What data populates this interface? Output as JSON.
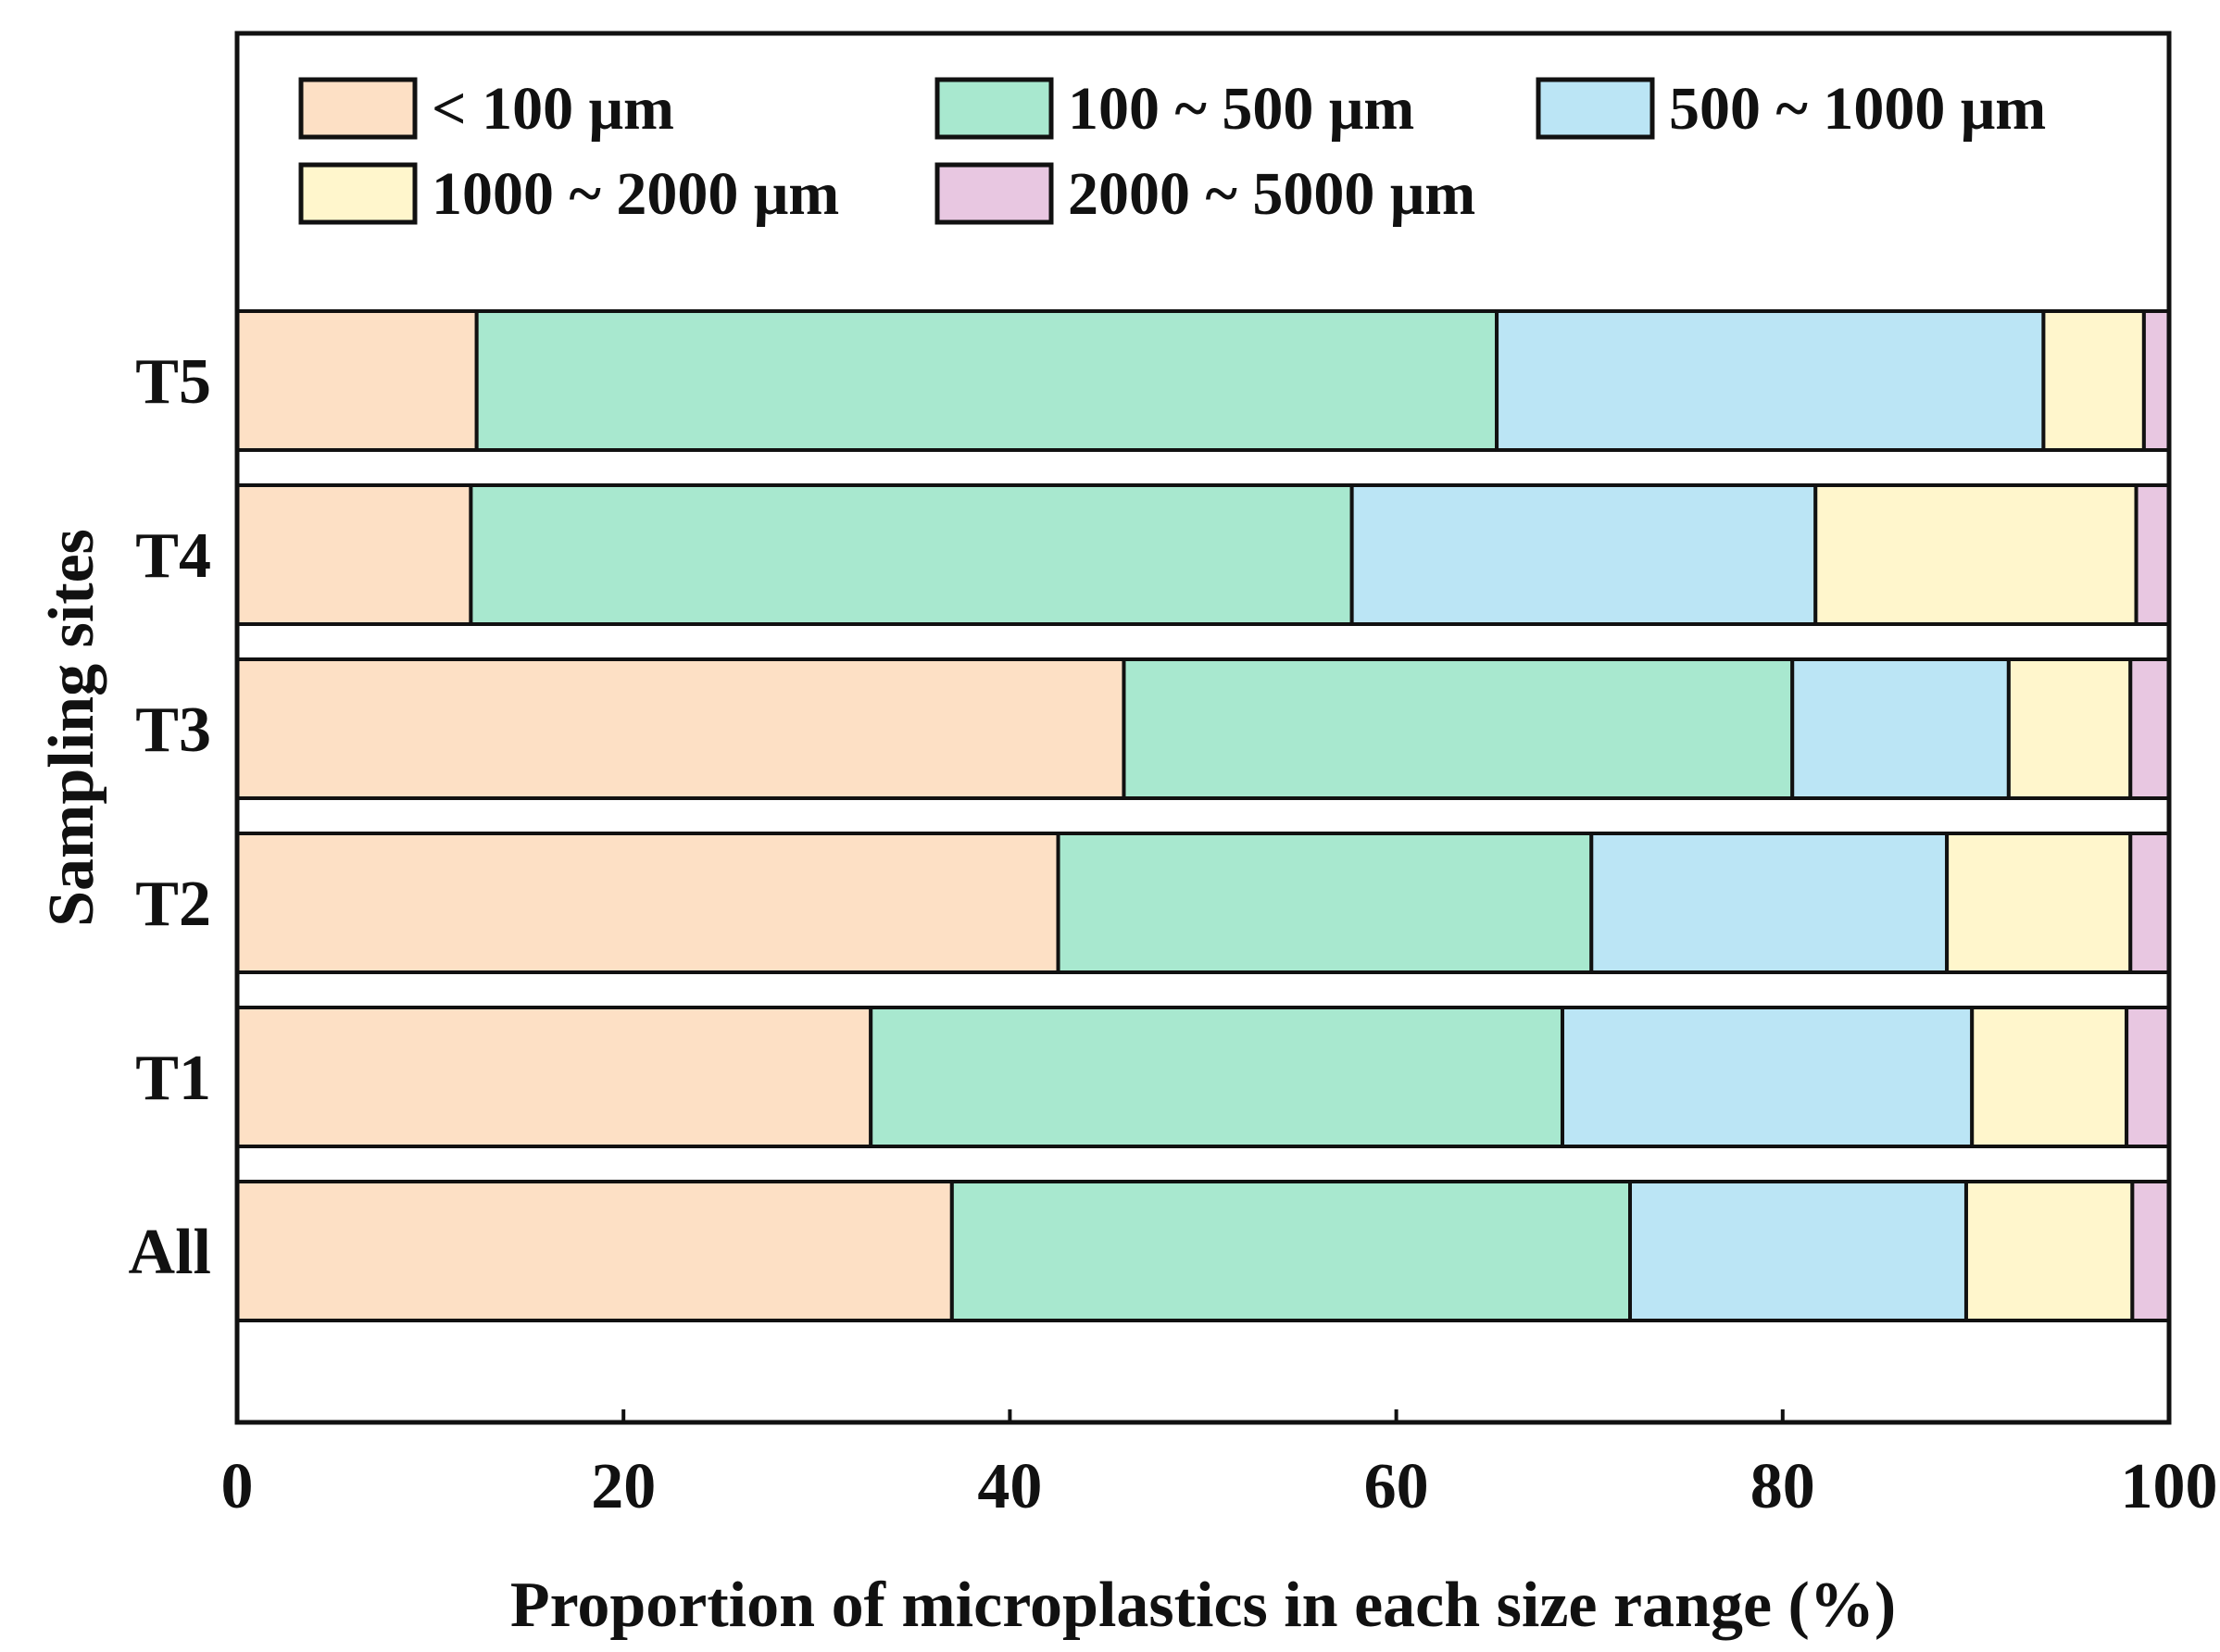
{
  "chart_data": {
    "type": "bar",
    "orientation": "horizontal",
    "stacked": true,
    "title": "",
    "xlabel": "Proportion of microplastics in each size range (%)",
    "ylabel": "Sampling sites",
    "xlim": [
      0,
      100
    ],
    "x_ticks": [
      "0",
      "20",
      "40",
      "60",
      "80",
      "100"
    ],
    "categories": [
      "T5",
      "T4",
      "T3",
      "T2",
      "T1",
      "All"
    ],
    "series": [
      {
        "name": "< 100 μm",
        "color": "#fde0c5",
        "values": [
          12.4,
          12.1,
          45.9,
          42.5,
          32.8,
          37.0
        ]
      },
      {
        "name": "100 ~ 500 μm",
        "color": "#a8e8cf",
        "values": [
          52.8,
          45.6,
          34.6,
          27.6,
          35.8,
          35.1
        ]
      },
      {
        "name": "500 ~ 1000 μm",
        "color": "#bbe5f5",
        "values": [
          28.3,
          24.0,
          11.2,
          18.4,
          21.2,
          17.4
        ]
      },
      {
        "name": "1000 ~ 2000 μm",
        "color": "#fff6cc",
        "values": [
          5.2,
          16.6,
          6.3,
          9.5,
          8.0,
          8.6
        ]
      },
      {
        "name": "2000 ~ 5000 μm",
        "color": "#e8c7e1",
        "values": [
          1.3,
          1.7,
          2.0,
          2.0,
          2.2,
          1.9
        ]
      }
    ],
    "legend_position": "top",
    "grid": false
  }
}
